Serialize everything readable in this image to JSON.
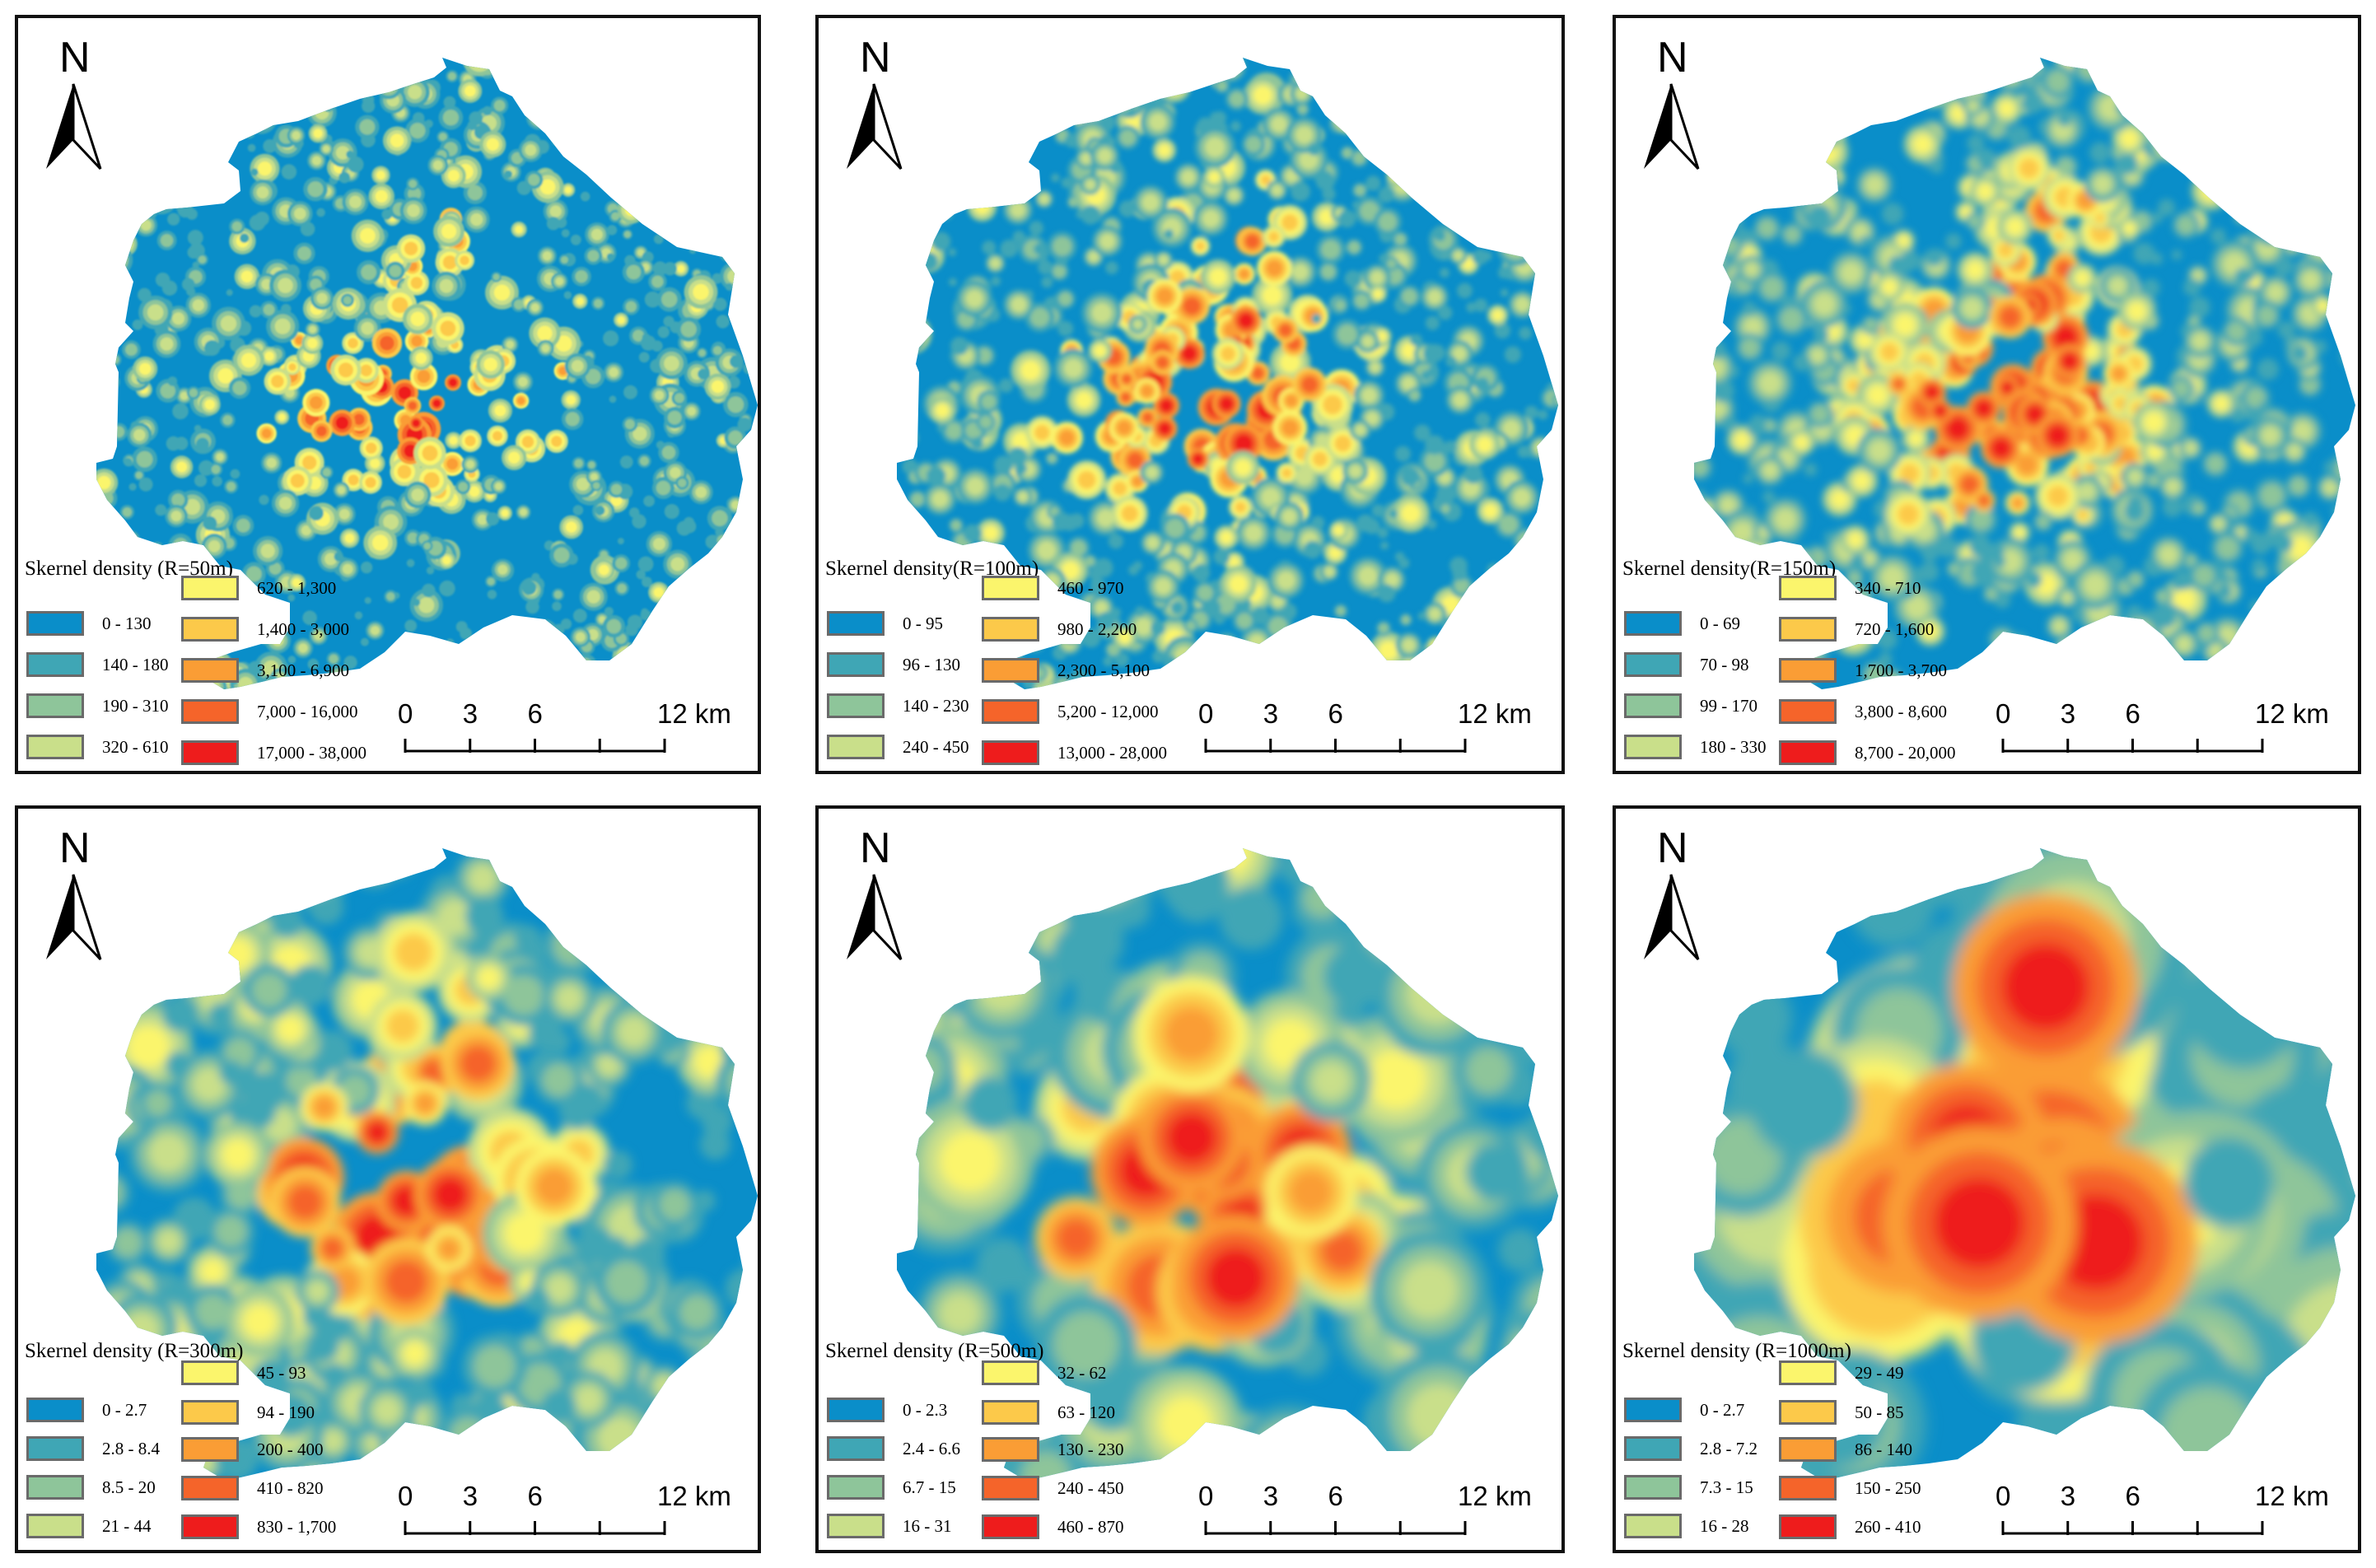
{
  "north_label": "N",
  "colors": {
    "class1": "#0a8ec9",
    "class2": "#3fa6b5",
    "class3": "#8ec59a",
    "class4": "#c9df8a",
    "class5": "#fbf56c",
    "class6": "#fcc94a",
    "class7": "#fa9d35",
    "class8": "#f5642a",
    "class9": "#ee1c1c"
  },
  "scale_labels": {
    "zero": "0",
    "three": "3",
    "six": "6",
    "twelve": "12 km"
  },
  "panels": [
    {
      "legend_title": "Skernel density (R=50m)",
      "classes": [
        "0 - 130",
        "140 - 180",
        "190 - 310",
        "320 - 610",
        "620 - 1,300",
        "1,400 - 3,000",
        "3,100 - 6,900",
        "7,000 - 16,000",
        "17,000 - 38,000"
      ]
    },
    {
      "legend_title": "Skernel density(R=100m)",
      "classes": [
        "0 - 95",
        "96 - 130",
        "140 - 230",
        "240 - 450",
        "460 - 970",
        "980 - 2,200",
        "2,300 - 5,100",
        "5,200 - 12,000",
        "13,000 - 28,000"
      ]
    },
    {
      "legend_title": "Skernel density(R=150m)",
      "classes": [
        "0 - 69",
        "70 - 98",
        "99 - 170",
        "180 - 330",
        "340 - 710",
        "720 - 1,600",
        "1,700 - 3,700",
        "3,800 - 8,600",
        "8,700 - 20,000"
      ]
    },
    {
      "legend_title": "Skernel density (R=300m)",
      "classes": [
        "0 - 2.7",
        "2.8 - 8.4",
        "8.5 - 20",
        "21 - 44",
        "45 - 93",
        "94 - 190",
        "200 - 400",
        "410 - 820",
        "830 - 1,700"
      ]
    },
    {
      "legend_title": "Skernel density (R=500m)",
      "classes": [
        "0 - 2.3",
        "2.4 - 6.6",
        "6.7 - 15",
        "16 - 31",
        "32 - 62",
        "63 - 120",
        "130 - 230",
        "240 - 450",
        "460 - 870"
      ]
    },
    {
      "legend_title": "Skernel density (R=1000m)",
      "classes": [
        "0 - 2.7",
        "2.8 - 7.2",
        "7.3 - 15",
        "16 - 28",
        "29 - 49",
        "50 - 85",
        "86 - 140",
        "150 - 250",
        "260 - 410"
      ]
    }
  ]
}
